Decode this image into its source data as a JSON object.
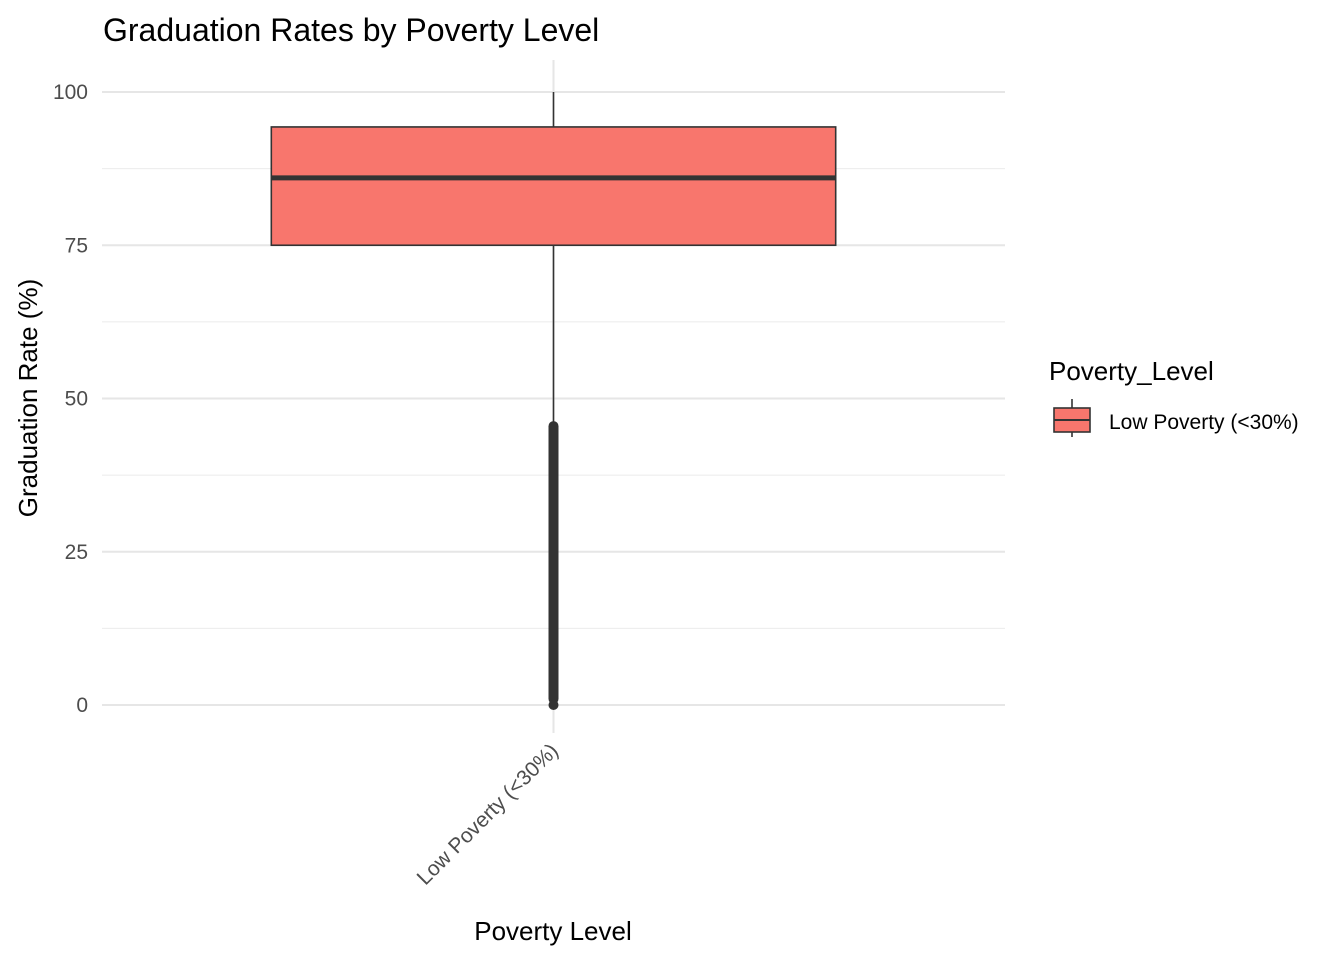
{
  "chart_data": {
    "type": "box",
    "title": "Graduation Rates by Poverty Level",
    "xlabel": "Poverty Level",
    "ylabel": "Graduation Rate (%)",
    "ylim": [
      -3.5,
      105
    ],
    "yticks": [
      0,
      25,
      50,
      75,
      100
    ],
    "categories": [
      "Low Poverty (<30%)"
    ],
    "boxes": [
      {
        "category": "Low Poverty (<30%)",
        "whisker_low": 46,
        "q1": 75,
        "median": 86,
        "q3": 94.3,
        "whisker_high": 100,
        "outliers_range": [
          1,
          45.5
        ],
        "outliers_extra": [
          0
        ],
        "fill": "#F8766D"
      }
    ],
    "legend": {
      "title": "Poverty_Level",
      "position": "right",
      "entries": [
        {
          "label": "Low Poverty (<30%)",
          "color": "#F8766D"
        }
      ]
    },
    "grid": true
  }
}
